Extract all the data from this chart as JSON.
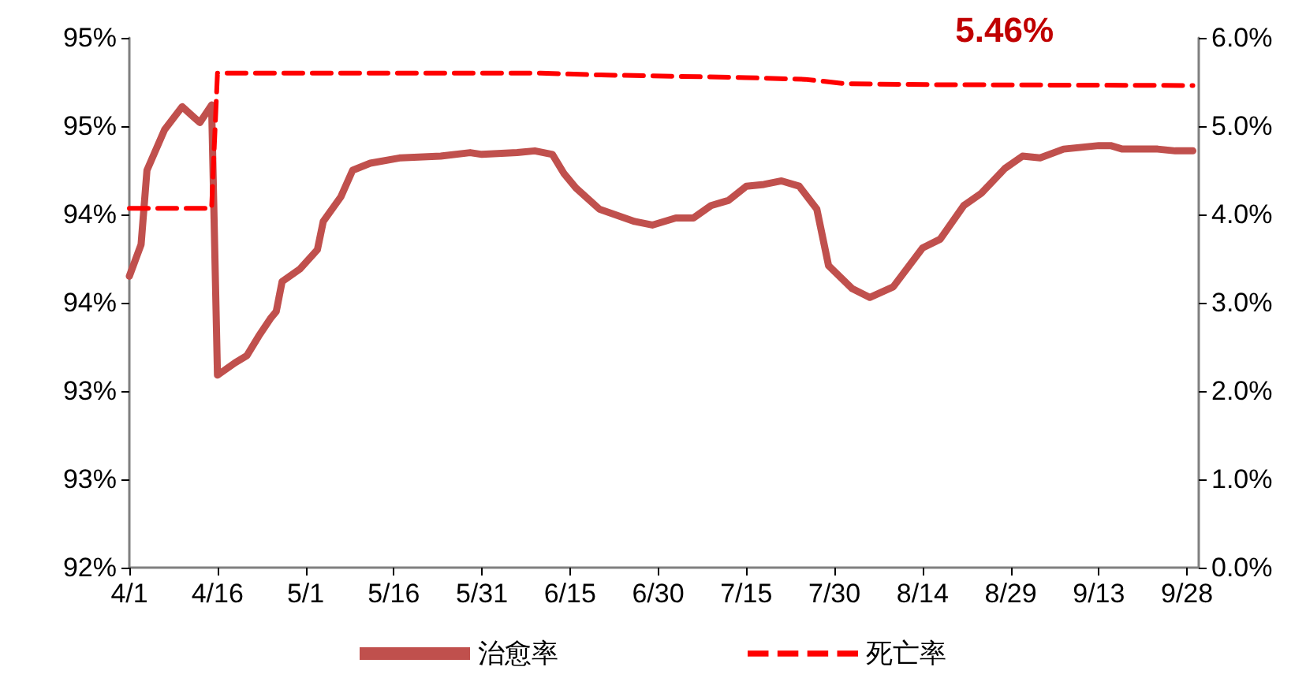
{
  "chart_data": {
    "type": "line",
    "x": [
      "--04-01",
      "--04-03",
      "--04-04",
      "--04-07",
      "--04-10",
      "--04-12",
      "--04-13",
      "--04-15",
      "--04-16",
      "--04-19",
      "--04-21",
      "--04-23",
      "--04-25",
      "--04-26",
      "--04-27",
      "--04-30",
      "--05-03",
      "--05-04",
      "--05-07",
      "--05-09",
      "--05-12",
      "--05-17",
      "--05-24",
      "--05-29",
      "--05-31",
      "--06-06",
      "--06-09",
      "--06-12",
      "--06-14",
      "--06-16",
      "--06-20",
      "--06-26",
      "--06-29",
      "--07-03",
      "--07-06",
      "--07-09",
      "--07-12",
      "--07-15",
      "--07-18",
      "--07-21",
      "--07-24",
      "--07-27",
      "--07-29",
      "--08-02",
      "--08-05",
      "--08-09",
      "--08-14",
      "--08-17",
      "--08-21",
      "--08-24",
      "--08-28",
      "--08-31",
      "--09-03",
      "--09-07",
      "--09-13",
      "--09-15",
      "--09-17",
      "--09-23",
      "--09-26",
      "--09-29"
    ],
    "series": [
      {
        "name": "治愈率",
        "color": "#c0504d",
        "line_style": "solid",
        "values": [
          93.65,
          93.83,
          94.25,
          94.48,
          94.61,
          94.55,
          94.52,
          94.62,
          93.09,
          93.16,
          93.2,
          93.31,
          93.41,
          93.45,
          93.62,
          93.69,
          93.8,
          93.96,
          94.1,
          94.25,
          94.29,
          94.32,
          94.33,
          94.35,
          94.34,
          94.35,
          94.36,
          94.34,
          94.23,
          94.15,
          94.03,
          93.96,
          93.94,
          93.98,
          93.98,
          94.05,
          94.08,
          94.16,
          94.17,
          94.19,
          94.16,
          94.03,
          93.71,
          93.58,
          93.53,
          93.59,
          93.81,
          93.86,
          94.05,
          94.12,
          94.26,
          94.33,
          94.32,
          94.37,
          94.39,
          94.39,
          94.37,
          94.37,
          94.36,
          94.36
        ]
      },
      {
        "name": "死亡率",
        "color": "#ff0000",
        "line_style": "dashed",
        "axis": "y2",
        "x": [
          "--04-01",
          "--04-15",
          "--04-16",
          "--06-10",
          "--06-20",
          "--07-15",
          "--07-25",
          "--08-01",
          "--08-15",
          "--09-29"
        ],
        "values": [
          4.07,
          4.07,
          5.6,
          5.6,
          5.58,
          5.55,
          5.53,
          5.48,
          5.47,
          5.46
        ]
      }
    ],
    "xlim": [
      "--04-01",
      "--09-30"
    ],
    "xticks": [
      {
        "value": "--04-01",
        "label": "4/1"
      },
      {
        "value": "--04-16",
        "label": "4/16"
      },
      {
        "value": "--05-01",
        "label": "5/1"
      },
      {
        "value": "--05-16",
        "label": "5/16"
      },
      {
        "value": "--05-31",
        "label": "5/31"
      },
      {
        "value": "--06-15",
        "label": "6/15"
      },
      {
        "value": "--06-30",
        "label": "6/30"
      },
      {
        "value": "--07-15",
        "label": "7/15"
      },
      {
        "value": "--07-30",
        "label": "7/30"
      },
      {
        "value": "--08-14",
        "label": "8/14"
      },
      {
        "value": "--08-29",
        "label": "8/29"
      },
      {
        "value": "--09-13",
        "label": "9/13"
      },
      {
        "value": "--09-28",
        "label": "9/28"
      }
    ],
    "ylim": [
      92,
      95
    ],
    "yticks": [
      {
        "value": 92,
        "label": "92%"
      },
      {
        "value": 92.5,
        "label": "93%"
      },
      {
        "value": 93,
        "label": "93%"
      },
      {
        "value": 93.5,
        "label": "94%"
      },
      {
        "value": 94,
        "label": "94%"
      },
      {
        "value": 94.5,
        "label": "95%"
      },
      {
        "value": 95,
        "label": "95%"
      }
    ],
    "y2lim": [
      0,
      6
    ],
    "y2ticks": [
      {
        "value": 0,
        "label": "0.0%"
      },
      {
        "value": 1,
        "label": "1.0%"
      },
      {
        "value": 2,
        "label": "2.0%"
      },
      {
        "value": 3,
        "label": "3.0%"
      },
      {
        "value": 4,
        "label": "4.0%"
      },
      {
        "value": 5,
        "label": "5.0%"
      },
      {
        "value": 6,
        "label": "6.0%"
      }
    ],
    "annotations": [
      "5.46%"
    ],
    "marker": "none",
    "grid": false,
    "legend": "bottom"
  }
}
